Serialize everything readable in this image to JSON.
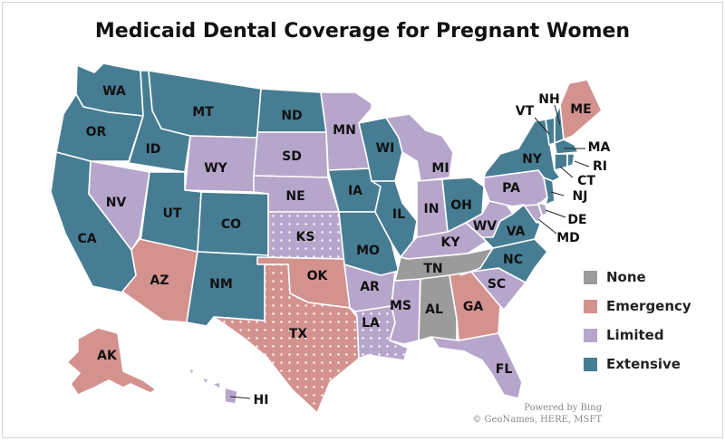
{
  "title": "Medicaid Dental Coverage for Pregnant Women",
  "colors": {
    "None": "#9b9b9b",
    "Emergency": "#d4928e",
    "Limited": "#b7a6cb",
    "Extensive": "#477d93",
    "dots": "#ffffff"
  },
  "legend": [
    {
      "label": "None",
      "category": "None"
    },
    {
      "label": "Emergency",
      "category": "Emergency"
    },
    {
      "label": "Limited",
      "category": "Limited"
    },
    {
      "label": "Extensive",
      "category": "Extensive"
    }
  ],
  "states": {
    "WA": "Extensive",
    "OR": "Extensive",
    "CA": "Extensive",
    "ID": "Extensive",
    "NV": "Limited",
    "MT": "Extensive",
    "WY": "Limited",
    "UT": "Extensive",
    "AZ": "Emergency",
    "CO": "Extensive",
    "NM": "Extensive",
    "ND": "Extensive",
    "SD": "Limited",
    "NE": "Limited",
    "KS": "Limited",
    "OK": "Emergency",
    "TX": "Emergency",
    "MN": "Limited",
    "IA": "Extensive",
    "MO": "Extensive",
    "AR": "Limited",
    "LA": "Limited",
    "WI": "Extensive",
    "IL": "Extensive",
    "MS": "Limited",
    "MI": "Limited",
    "IN": "Limited",
    "OH": "Extensive",
    "KY": "Limited",
    "TN": "None",
    "AL": "None",
    "GA": "Emergency",
    "FL": "Limited",
    "SC": "Limited",
    "NC": "Extensive",
    "VA": "Extensive",
    "WV": "Limited",
    "PA": "Limited",
    "NY": "Extensive",
    "ME": "Emergency",
    "NH": "Extensive",
    "VT": "Extensive",
    "MA": "Extensive",
    "RI": "Extensive",
    "CT": "Extensive",
    "NJ": "Extensive",
    "DE": "Limited",
    "MD": "Limited",
    "AK": "Emergency",
    "HI": "Limited"
  },
  "dotted_states": [
    "KS",
    "TX",
    "LA"
  ],
  "credit": {
    "line1": "Powered by Bing",
    "line2": "© GeoNames, HERE, MSFT"
  }
}
